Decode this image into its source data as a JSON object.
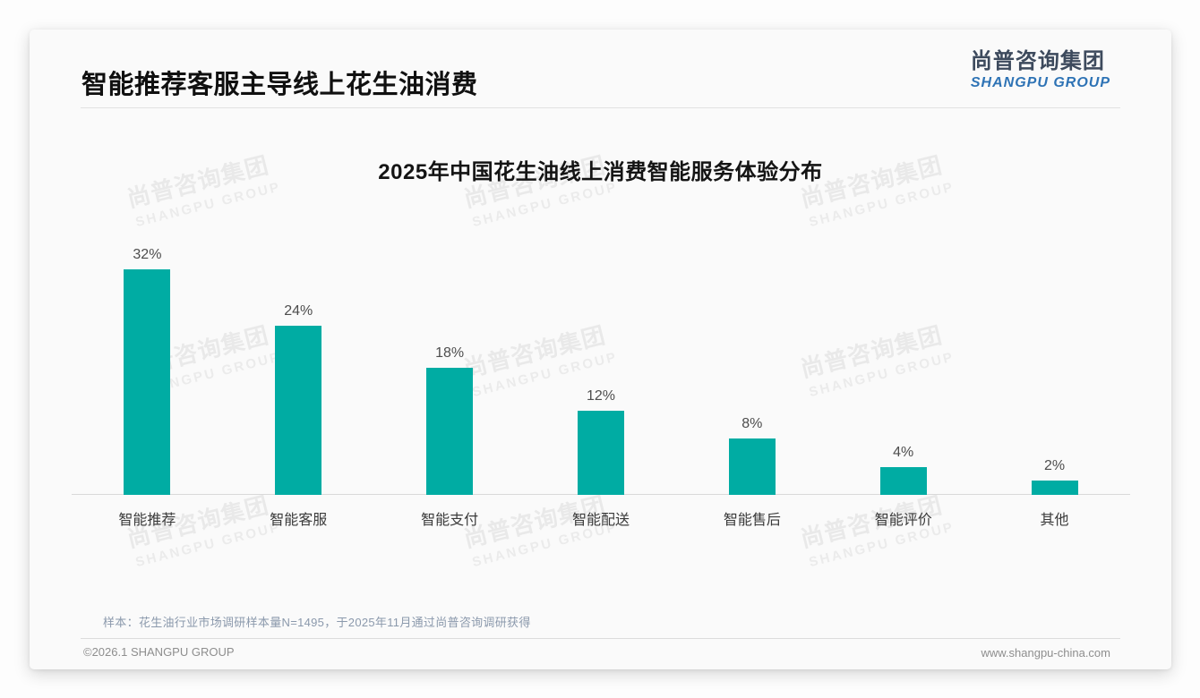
{
  "header": {
    "title": "智能推荐客服主导线上花生油消费",
    "logo_cn": "尚普咨询集团",
    "logo_en": "SHANGPU GROUP"
  },
  "watermark": {
    "cn": "尚普咨询集团",
    "en": "SHANGPU GROUP"
  },
  "chart_data": {
    "type": "bar",
    "title": "2025年中国花生油线上消费智能服务体验分布",
    "categories": [
      "智能推荐",
      "智能客服",
      "智能支付",
      "智能配送",
      "智能售后",
      "智能评价",
      "其他"
    ],
    "values": [
      32,
      24,
      18,
      12,
      8,
      4,
      2
    ],
    "value_labels": [
      "32%",
      "24%",
      "18%",
      "12%",
      "8%",
      "4%",
      "2%"
    ],
    "unit": "percent",
    "bar_color": "#00ACA3",
    "xlabel": "",
    "ylabel": "",
    "ylim": [
      0,
      32
    ],
    "grid": false,
    "legend": "none",
    "value_labels_position": "above-bar"
  },
  "footnote": "样本：花生油行业市场调研样本量N=1495，于2025年11月通过尚普咨询调研获得",
  "footer": {
    "left": "©2026.1 SHANGPU GROUP",
    "right": "www.shangpu-china.com"
  },
  "colors": {
    "bar": "#00ACA3",
    "logo_cn_text": "#3d4a5d",
    "logo_en_text": "#2e73b5",
    "note_text": "#8b99ac"
  }
}
